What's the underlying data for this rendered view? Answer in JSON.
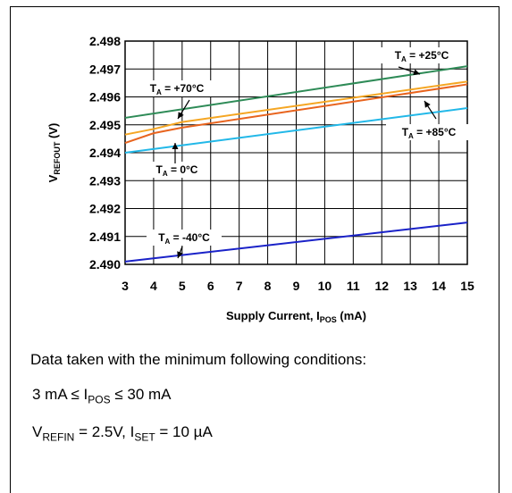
{
  "chart_data": {
    "type": "line",
    "xlabel_main": "Supply Current, I",
    "xlabel_sub": "POS",
    "xlabel_unit": " (mA)",
    "ylabel_main": "V",
    "ylabel_sub": "REFOUT",
    "ylabel_unit": " (V)",
    "xlim": [
      3,
      15
    ],
    "ylim": [
      2.49,
      2.498
    ],
    "xticks": [
      "3",
      "4",
      "5",
      "6",
      "7",
      "8",
      "9",
      "10",
      "11",
      "12",
      "13",
      "14",
      "15"
    ],
    "yticks": [
      "2.490",
      "2.491",
      "2.492",
      "2.493",
      "2.494",
      "2.495",
      "2.496",
      "2.497",
      "2.498"
    ],
    "grid": true,
    "series": [
      {
        "name": "+25°C",
        "color": "#2e8b57",
        "x": [
          3,
          15
        ],
        "y": [
          2.49525,
          2.4971
        ]
      },
      {
        "name": "+70°C",
        "color": "#f5a623",
        "x": [
          3,
          4,
          5,
          15
        ],
        "y": [
          2.49465,
          2.49485,
          2.4951,
          2.49655
        ]
      },
      {
        "name": "+85°C",
        "color": "#e8641e",
        "x": [
          3,
          4,
          5,
          15
        ],
        "y": [
          2.49435,
          2.4947,
          2.4949,
          2.49645
        ]
      },
      {
        "name": "0°C",
        "color": "#22b8e8",
        "x": [
          3,
          15
        ],
        "y": [
          2.494,
          2.4956
        ]
      },
      {
        "name": "-40°C",
        "color": "#1a22c8",
        "x": [
          3,
          15
        ],
        "y": [
          2.4901,
          2.4915
        ]
      }
    ],
    "annotations": [
      {
        "series": "+25°C",
        "prefix": "T",
        "sub": "A",
        "text": " = +25°C"
      },
      {
        "series": "+70°C",
        "prefix": "T",
        "sub": "A",
        "text": " = +70°C"
      },
      {
        "series": "+85°C",
        "prefix": "T",
        "sub": "A",
        "text": " = +85°C"
      },
      {
        "series": "0°C",
        "prefix": "T",
        "sub": "A",
        "text": " = 0°C"
      },
      {
        "series": "-40°C",
        "prefix": "T",
        "sub": "A",
        "text": " = -40°C"
      }
    ]
  },
  "conditions": {
    "line1": "Data taken with the minimum following conditions:",
    "line2_a": "3 mA ≤ I",
    "line2_sub": "POS",
    "line2_b": " ≤ 30 mA",
    "line3_a": "V",
    "line3_sub1": "REFIN",
    "line3_b": " = 2.5V, I",
    "line3_sub2": "SET",
    "line3_c": " = 10 µA"
  }
}
